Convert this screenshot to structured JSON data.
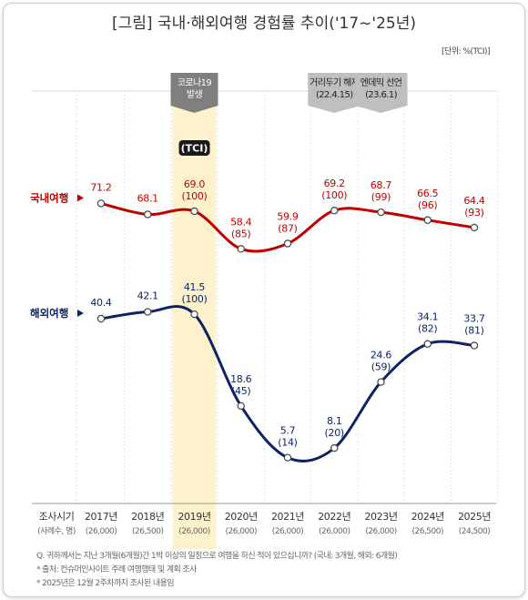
{
  "title": "[그림] 국내·해외여행 경험률 추이('17~'25년)",
  "unit": "[단위: %(TCI)]",
  "colors": {
    "domestic": "#c00000",
    "overseas": "#0d2366",
    "highlight": "#fdf2cc",
    "badge": "#7f7f7f",
    "tci_badge": "#1a1a1a"
  },
  "chart_data": {
    "type": "line",
    "x": [
      "2017년",
      "2018년",
      "2019년",
      "2020년",
      "2021년",
      "2022년",
      "2023년",
      "2024년",
      "2025년"
    ],
    "x_sub": [
      "(26,000)",
      "(26,500)",
      "(26,000)",
      "(26,000)",
      "(26,000)",
      "(26,000)",
      "(26,000)",
      "(26,500)",
      "(24,500)"
    ],
    "x_header": "조사시기",
    "x_header_sub": "(사례수, 명)",
    "series": [
      {
        "name": "국내여행",
        "values": [
          71.2,
          68.1,
          69.0,
          58.4,
          59.9,
          69.2,
          68.7,
          66.5,
          64.4
        ],
        "tci": [
          "",
          "",
          "(100)",
          "(85)",
          "(87)",
          "(100)",
          "(99)",
          "(96)",
          "(93)"
        ]
      },
      {
        "name": "해외여행",
        "values": [
          40.4,
          42.1,
          41.5,
          18.6,
          5.7,
          8.1,
          24.6,
          34.1,
          33.7
        ],
        "tci": [
          "",
          "",
          "(100)",
          "(45)",
          "(14)",
          "(20)",
          "(59)",
          "(82)",
          "(81)"
        ]
      }
    ],
    "highlight_index": 2,
    "tci_label": "(TCI)",
    "annotations": [
      {
        "index": 2,
        "lines": [
          "코로나19",
          "발생"
        ],
        "style": "dark"
      },
      {
        "index": 5,
        "lines": [
          "거리두기 해제",
          "(22.4.15)"
        ],
        "style": "light"
      },
      {
        "index": 6,
        "lines": [
          "엔데믹 선언",
          "(23.6.1)"
        ],
        "style": "light"
      }
    ]
  },
  "notes": [
    "Q. 귀하께서는 지난 3개월(6개월)간 1박 이상의 일정으로 여행을 하신 적이 있으십니까? (국내: 3개월, 해외: 6개월)",
    "* 출처: 컨슈머인사이트 주례 여행행태 및 계획 조사",
    "* 2025년은 12월 2주차까지 조사된 내용임"
  ]
}
